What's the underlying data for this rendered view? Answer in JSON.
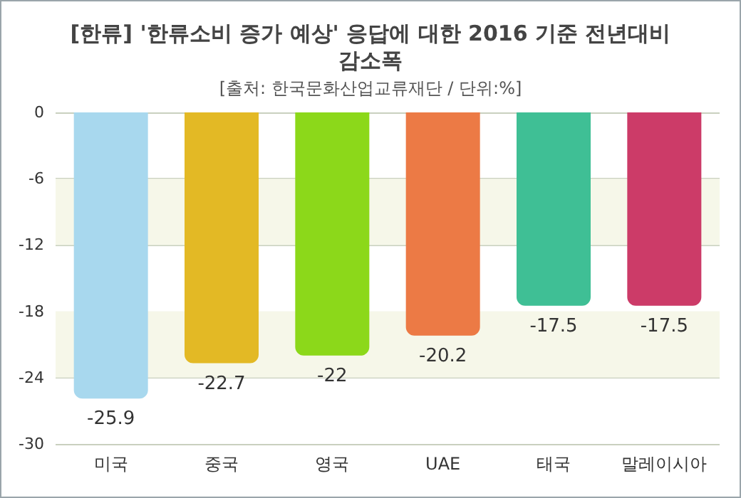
{
  "chart_data": {
    "type": "bar",
    "title": "[한류] '한류소비 증가 예상' 응답에 대한 2016 기준 전년대비 감소폭",
    "subtitle": "[출처: 한국문화산업교류재단 / 단위:%]",
    "categories": [
      "미국",
      "중국",
      "영국",
      "UAE",
      "태국",
      "말레이시아"
    ],
    "values": [
      -25.9,
      -22.7,
      -22,
      -20.2,
      -17.5,
      -17.5
    ],
    "colors": [
      "#a8d8ee",
      "#e3b925",
      "#8cd81a",
      "#ec7a45",
      "#3fbf95",
      "#cc3b68"
    ],
    "ylim": [
      -30,
      0
    ],
    "yticks": [
      -30,
      -24,
      -18,
      -12,
      -6,
      0
    ],
    "grid": "y",
    "data_labels": true,
    "bands": [
      {
        "axis": "y",
        "from": -12,
        "to": -6,
        "color": "#f6f7e9"
      },
      {
        "axis": "y",
        "from": -24,
        "to": -18,
        "color": "#f6f7e9"
      }
    ]
  }
}
